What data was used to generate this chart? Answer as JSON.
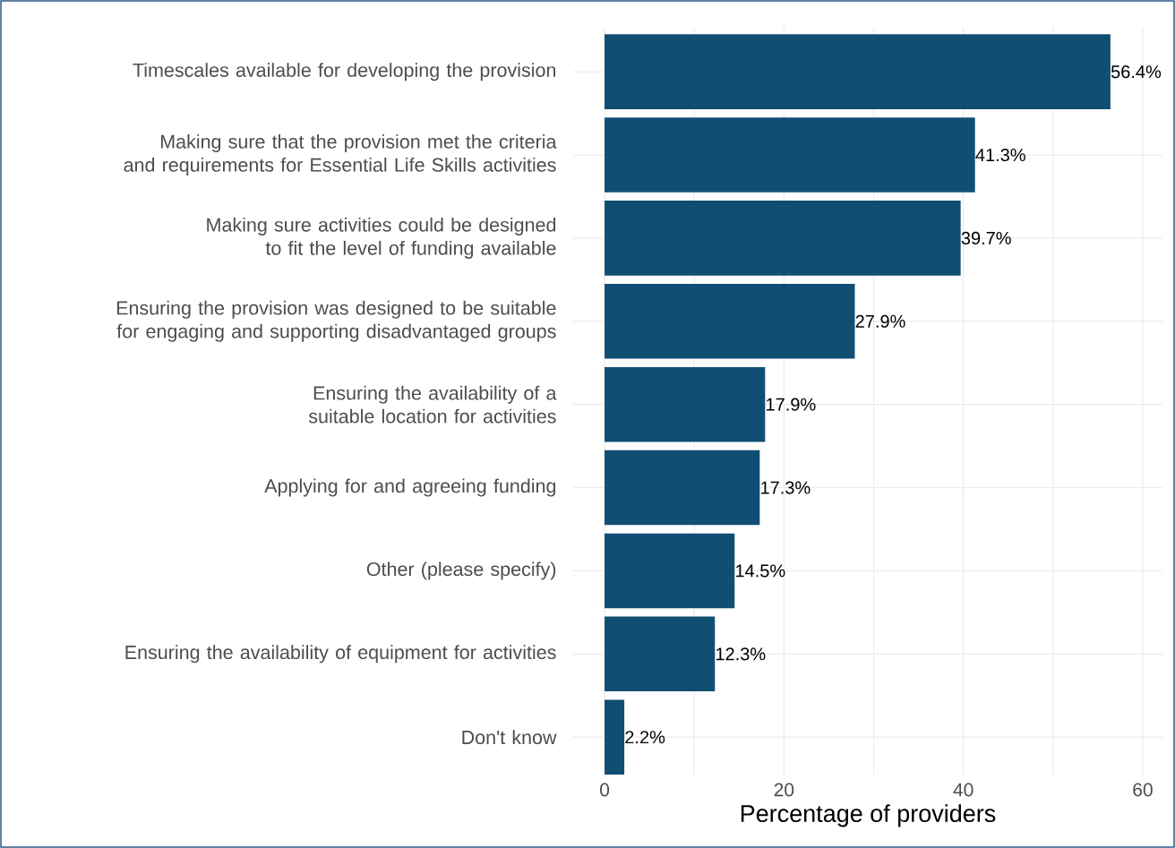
{
  "chart_data": {
    "type": "bar",
    "orientation": "horizontal",
    "xlabel": "Percentage of providers",
    "categories": [
      "Timescales available for developing the provision",
      "Making sure that the provision met the criteria and requirements for Essential Life Skills activities",
      "Making sure activities could be designed to fit the level of funding available",
      "Ensuring the provision was designed to be suitable for engaging and supporting disadvantaged groups",
      "Ensuring the availability of a suitable location for activities",
      "Applying for and agreeing funding",
      "Other (please specify)",
      "Ensuring the availability of equipment for activities",
      "Don't know"
    ],
    "values": [
      56.4,
      41.3,
      39.7,
      27.9,
      17.9,
      17.3,
      14.5,
      12.3,
      2.2
    ],
    "value_labels": [
      "56.4%",
      "41.3%",
      "39.7%",
      "27.9%",
      "17.9%",
      "17.3%",
      "14.5%",
      "12.3%",
      "2.2%"
    ],
    "color": "#114e74",
    "xlim": [
      -3.5,
      62.2
    ],
    "xticks": [
      0,
      {
        "value": 10,
        "label": null
      },
      20,
      {
        "value": 30,
        "label": null
      },
      40,
      {
        "value": 50,
        "label": null
      },
      60
    ],
    "grid": true
  }
}
